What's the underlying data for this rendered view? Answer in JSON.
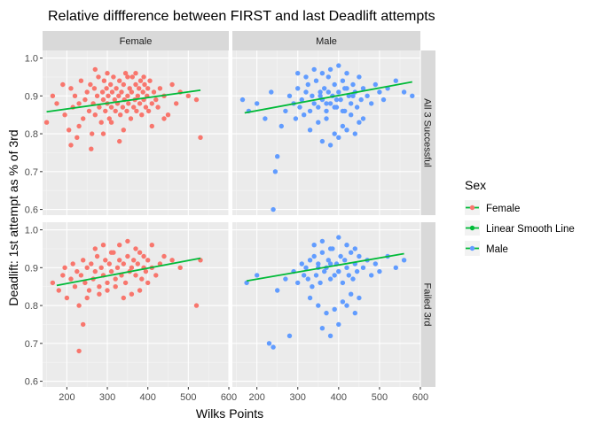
{
  "chart_data": {
    "type": "scatter",
    "title": "Relative diffference between FIRST and last Deadlift attempts",
    "xlabel": "Wilks Points",
    "ylabel": "Deadlift: 1st attempt as % of 3rd",
    "xlim": [
      140,
      600
    ],
    "ylim": [
      0.585,
      1.02
    ],
    "x_ticks": [
      200,
      300,
      400,
      500,
      600
    ],
    "y_ticks": [
      0.6,
      0.7,
      0.8,
      0.9,
      1.0
    ],
    "y_tick_labels": [
      "0.6",
      "0.7",
      "0.8",
      "0.9",
      "1.0"
    ],
    "grid": true,
    "legend_position": "right",
    "legend": {
      "title": "Sex",
      "entries": [
        "Female",
        "Linear Smooth Line",
        "Male"
      ]
    },
    "colors": {
      "Female": "#F8766D",
      "Linear Smooth Line": "#00BA38",
      "Male": "#619CFF",
      "panel_background": "#EBEBEB",
      "grid_major": "#FFFFFF",
      "strip_background": "#D9D9D9"
    },
    "facet_columns": [
      "Female",
      "Male"
    ],
    "facet_rows": [
      "All 3 Successful",
      "Failed 3rd"
    ],
    "panels": [
      {
        "column": "Female",
        "row": "All 3 Successful",
        "series": [
          {
            "name": "Female",
            "x": [
              150,
              165,
              175,
              190,
              195,
              205,
              210,
              215,
              220,
              225,
              230,
              235,
              240,
              245,
              250,
              255,
              258,
              262,
              265,
              268,
              270,
              275,
              278,
              280,
              285,
              288,
              290,
              292,
              295,
              298,
              300,
              302,
              305,
              308,
              310,
              312,
              315,
              318,
              320,
              322,
              325,
              328,
              330,
              332,
              335,
              338,
              340,
              342,
              345,
              348,
              350,
              352,
              355,
              358,
              360,
              362,
              365,
              368,
              370,
              372,
              375,
              378,
              380,
              382,
              385,
              388,
              390,
              392,
              395,
              398,
              400,
              402,
              405,
              410,
              415,
              420,
              425,
              430,
              440,
              450,
              460,
              470,
              480,
              500,
              520,
              530,
              210,
              230,
              260,
              290,
              310,
              330,
              350,
              370,
              390,
              410,
              440,
              270,
              300,
              340
            ],
            "y": [
              0.83,
              0.9,
              0.88,
              0.93,
              0.85,
              0.81,
              0.92,
              0.87,
              0.9,
              0.79,
              0.88,
              0.94,
              0.84,
              0.89,
              0.91,
              0.86,
              0.93,
              0.8,
              0.88,
              0.92,
              0.85,
              0.9,
              0.95,
              0.87,
              0.83,
              0.91,
              0.89,
              0.94,
              0.86,
              0.92,
              0.88,
              0.9,
              0.84,
              0.93,
              0.87,
              0.91,
              0.95,
              0.89,
              0.86,
              0.92,
              0.88,
              0.9,
              0.94,
              0.85,
              0.91,
              0.87,
              0.93,
              0.89,
              0.96,
              0.86,
              0.9,
              0.88,
              0.92,
              0.84,
              0.91,
              0.95,
              0.87,
              0.89,
              0.93,
              0.86,
              0.9,
              0.92,
              0.88,
              0.94,
              0.85,
              0.91,
              0.89,
              0.93,
              0.87,
              0.9,
              0.92,
              0.86,
              0.94,
              0.88,
              0.91,
              0.89,
              0.87,
              0.92,
              0.9,
              0.85,
              0.93,
              0.88,
              0.91,
              0.9,
              0.89,
              0.79,
              0.77,
              0.82,
              0.76,
              0.8,
              0.83,
              0.78,
              0.95,
              0.96,
              0.95,
              0.82,
              0.84,
              0.97,
              0.96,
              0.81
            ]
          },
          {
            "name": "Linear Smooth Line",
            "x": [
              150,
              530
            ],
            "y": [
              0.858,
              0.915
            ]
          }
        ]
      },
      {
        "column": "Male",
        "row": "All 3 Successful",
        "series": [
          {
            "name": "Male",
            "x": [
              165,
              180,
              200,
              220,
              235,
              240,
              245,
              250,
              260,
              270,
              280,
              290,
              295,
              300,
              305,
              310,
              315,
              320,
              325,
              330,
              335,
              340,
              345,
              350,
              355,
              360,
              365,
              370,
              375,
              380,
              385,
              390,
              395,
              400,
              405,
              410,
              415,
              420,
              425,
              430,
              435,
              440,
              445,
              450,
              455,
              460,
              470,
              480,
              490,
              500,
              510,
              520,
              540,
              560,
              580,
              330,
              350,
              370,
              390,
              410,
              430,
              450,
              300,
              320,
              340,
              360,
              380,
              400,
              420,
              360,
              380,
              400,
              420,
              440,
              460,
              355,
              375,
              395,
              415,
              435,
              370,
              390,
              410
            ],
            "y": [
              0.89,
              0.86,
              0.88,
              0.84,
              0.91,
              0.6,
              0.7,
              0.74,
              0.82,
              0.86,
              0.9,
              0.88,
              0.84,
              0.92,
              0.87,
              0.89,
              0.85,
              0.91,
              0.93,
              0.86,
              0.9,
              0.88,
              0.94,
              0.87,
              0.91,
              0.89,
              0.92,
              0.86,
              0.95,
              0.88,
              0.9,
              0.93,
              0.87,
              0.91,
              0.89,
              0.94,
              0.86,
              0.92,
              0.9,
              0.88,
              0.93,
              0.91,
              0.87,
              0.95,
              0.89,
              0.92,
              0.9,
              0.88,
              0.93,
              0.91,
              0.89,
              0.92,
              0.94,
              0.91,
              0.9,
              0.81,
              0.83,
              0.84,
              0.8,
              0.82,
              0.85,
              0.83,
              0.96,
              0.95,
              0.97,
              0.96,
              0.97,
              0.98,
              0.96,
              0.78,
              0.77,
              0.79,
              0.81,
              0.8,
              0.84,
              0.9,
              0.91,
              0.89,
              0.92,
              0.9,
              0.88,
              0.87,
              0.86
            ]
          },
          {
            "name": "Linear Smooth Line",
            "x": [
              170,
              580
            ],
            "y": [
              0.855,
              0.937
            ]
          }
        ]
      },
      {
        "column": "Female",
        "row": "Failed 3rd",
        "series": [
          {
            "name": "Female",
            "x": [
              165,
              180,
              190,
              195,
              200,
              210,
              215,
              220,
              225,
              230,
              235,
              240,
              245,
              250,
              255,
              260,
              265,
              270,
              275,
              280,
              285,
              290,
              295,
              300,
              305,
              310,
              315,
              320,
              325,
              330,
              335,
              340,
              345,
              350,
              355,
              360,
              365,
              370,
              375,
              380,
              385,
              390,
              395,
              400,
              410,
              420,
              430,
              440,
              460,
              480,
              520,
              530,
              250,
              280,
              300,
              320,
              340,
              360,
              380,
              400,
              230,
              240,
              270,
              290,
              310,
              330,
              350,
              370,
              390,
              410
            ],
            "y": [
              0.86,
              0.84,
              0.88,
              0.9,
              0.82,
              0.87,
              0.91,
              0.85,
              0.89,
              0.8,
              0.88,
              0.92,
              0.86,
              0.9,
              0.84,
              0.91,
              0.87,
              0.89,
              0.93,
              0.85,
              0.9,
              0.88,
              0.92,
              0.86,
              0.91,
              0.89,
              0.94,
              0.87,
              0.9,
              0.92,
              0.88,
              0.91,
              0.86,
              0.93,
              0.89,
              0.9,
              0.92,
              0.88,
              0.91,
              0.94,
              0.87,
              0.9,
              0.89,
              0.92,
              0.9,
              0.88,
              0.91,
              0.93,
              0.92,
              0.9,
              0.8,
              0.92,
              0.82,
              0.83,
              0.84,
              0.85,
              0.82,
              0.83,
              0.84,
              0.86,
              0.68,
              0.75,
              0.95,
              0.96,
              0.94,
              0.96,
              0.97,
              0.95,
              0.93,
              0.96
            ]
          },
          {
            "name": "Linear Smooth Line",
            "x": [
              175,
              530
            ],
            "y": [
              0.853,
              0.925
            ]
          }
        ]
      },
      {
        "column": "Male",
        "row": "Failed 3rd",
        "series": [
          {
            "name": "Male",
            "x": [
              175,
              200,
              230,
              240,
              250,
              270,
              280,
              290,
              300,
              310,
              315,
              320,
              325,
              330,
              335,
              340,
              345,
              350,
              355,
              360,
              365,
              370,
              375,
              380,
              385,
              390,
              395,
              400,
              405,
              410,
              415,
              420,
              425,
              430,
              435,
              440,
              445,
              450,
              460,
              470,
              480,
              490,
              500,
              520,
              540,
              560,
              330,
              350,
              370,
              390,
              410,
              430,
              450,
              340,
              360,
              380,
              400,
              420,
              440,
              360,
              380,
              400,
              420,
              440,
              350,
              380,
              400
            ],
            "y": [
              0.86,
              0.88,
              0.7,
              0.69,
              0.84,
              0.87,
              0.72,
              0.89,
              0.86,
              0.91,
              0.88,
              0.9,
              0.87,
              0.92,
              0.85,
              0.93,
              0.88,
              0.91,
              0.86,
              0.94,
              0.89,
              0.9,
              0.92,
              0.87,
              0.95,
              0.88,
              0.91,
              0.89,
              0.93,
              0.86,
              0.92,
              0.9,
              0.88,
              0.94,
              0.87,
              0.91,
              0.89,
              0.93,
              0.9,
              0.92,
              0.88,
              0.91,
              0.89,
              0.93,
              0.9,
              0.92,
              0.82,
              0.8,
              0.78,
              0.79,
              0.81,
              0.83,
              0.82,
              0.96,
              0.97,
              0.95,
              0.98,
              0.96,
              0.95,
              0.74,
              0.72,
              0.75,
              0.8,
              0.78,
              0.9,
              0.91,
              0.89
            ]
          },
          {
            "name": "Linear Smooth Line",
            "x": [
              175,
              560
            ],
            "y": [
              0.865,
              0.937
            ]
          }
        ]
      }
    ]
  }
}
